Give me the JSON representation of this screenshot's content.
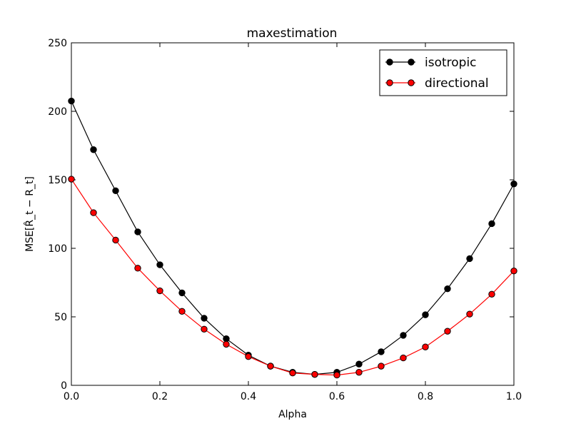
{
  "chart_data": {
    "type": "line",
    "title": "maxestimation",
    "xlabel": "Alpha",
    "ylabel": "MSE[R̂_t − R_t]",
    "xlim": [
      0.0,
      1.0
    ],
    "ylim": [
      0,
      250
    ],
    "x_ticks": [
      0.0,
      0.2,
      0.4,
      0.6,
      0.8,
      1.0
    ],
    "x_tick_labels": [
      "0.0",
      "0.2",
      "0.4",
      "0.6",
      "0.8",
      "1.0"
    ],
    "y_ticks": [
      0,
      50,
      100,
      150,
      200,
      250
    ],
    "y_tick_labels": [
      "0",
      "50",
      "100",
      "150",
      "200",
      "250"
    ],
    "grid": false,
    "legend_position": "top-right",
    "x": [
      0.0,
      0.05,
      0.1,
      0.15,
      0.2,
      0.25,
      0.3,
      0.35,
      0.4,
      0.45,
      0.5,
      0.55,
      0.6,
      0.65,
      0.7,
      0.75,
      0.8,
      0.85,
      0.9,
      0.95,
      1.0
    ],
    "series": [
      {
        "name": "isotropic",
        "color": "#000000",
        "values": [
          207.5,
          172,
          142,
          112,
          88,
          67.5,
          49,
          34,
          22,
          14,
          9.5,
          8,
          9.5,
          15.5,
          24.5,
          36.5,
          51.5,
          70.5,
          92.5,
          118,
          147
        ]
      },
      {
        "name": "directional",
        "color": "#ff0000",
        "values": [
          150.5,
          126,
          106,
          85.5,
          69,
          54,
          41,
          30,
          21,
          14,
          9,
          8,
          7.5,
          9.5,
          14,
          20,
          28,
          39.5,
          52,
          66.5,
          83.5
        ]
      }
    ]
  }
}
